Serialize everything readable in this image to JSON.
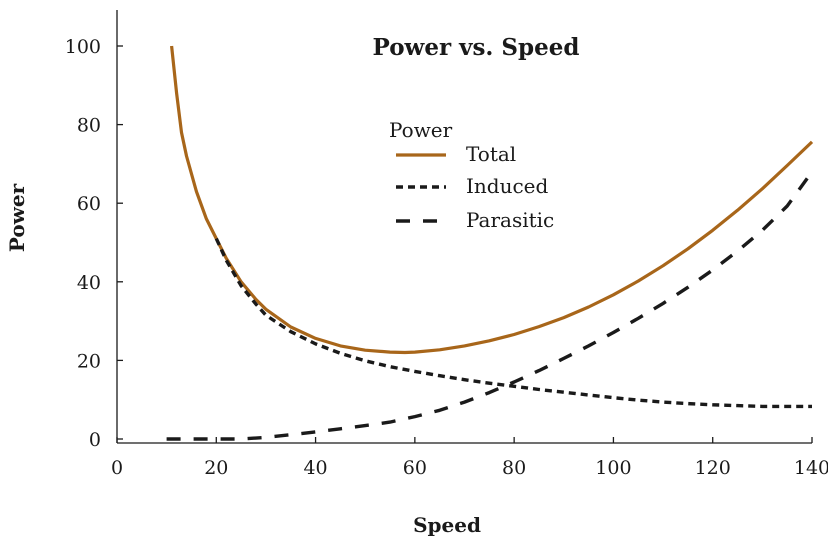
{
  "chart_data": {
    "type": "line",
    "title": "Power vs. Speed",
    "xlabel": "Speed",
    "ylabel": "Power",
    "xlim": [
      0,
      140
    ],
    "ylim": [
      0,
      100
    ],
    "xticks": [
      0,
      20,
      40,
      60,
      80,
      100,
      120,
      140
    ],
    "yticks": [
      0,
      20,
      40,
      60,
      80,
      100
    ],
    "xtick_labels": [
      "0",
      "20",
      "40",
      "60",
      "80",
      "100",
      "120",
      "140"
    ],
    "ytick_labels": [
      "0",
      "20",
      "40",
      "60",
      "80",
      "100"
    ],
    "grid": false,
    "legend": {
      "title": "Power",
      "position": "top-center"
    },
    "series": [
      {
        "name": "Total",
        "style": "solid",
        "color": "#a8661a",
        "x": [
          11,
          12,
          13,
          14,
          16,
          18,
          20,
          22,
          25,
          28,
          30,
          35,
          40,
          45,
          50,
          55,
          58,
          60,
          65,
          70,
          75,
          80,
          85,
          90,
          95,
          100,
          105,
          110,
          115,
          120,
          125,
          130,
          135,
          140
        ],
        "y": [
          100,
          88,
          78,
          72,
          63,
          56,
          51,
          46,
          40,
          35.5,
          33,
          28.5,
          25.6,
          23.7,
          22.6,
          22.1,
          22,
          22.1,
          22.7,
          23.7,
          25,
          26.6,
          28.6,
          30.9,
          33.6,
          36.7,
          40.2,
          44.1,
          48.4,
          53.1,
          58.2,
          63.7,
          69.6,
          75.6
        ]
      },
      {
        "name": "Induced",
        "style": "short-dash",
        "color": "#1a1a1a",
        "x": [
          20,
          22,
          25,
          28,
          30,
          35,
          40,
          45,
          50,
          55,
          60,
          65,
          70,
          75,
          80,
          85,
          90,
          95,
          100,
          105,
          110,
          115,
          120,
          125,
          130,
          135,
          140
        ],
        "y": [
          51,
          45.5,
          39,
          34.3,
          31.5,
          27.3,
          24.2,
          21.8,
          19.9,
          18.4,
          17.2,
          16.1,
          15.1,
          14.2,
          13.4,
          12.6,
          11.9,
          11.2,
          10.5,
          9.9,
          9.4,
          9.0,
          8.7,
          8.5,
          8.3,
          8.3,
          8.3
        ]
      },
      {
        "name": "Parasitic",
        "style": "long-dash",
        "color": "#1a1a1a",
        "x": [
          10,
          15,
          20,
          25,
          30,
          35,
          40,
          45,
          50,
          55,
          60,
          65,
          70,
          75,
          80,
          85,
          90,
          95,
          100,
          105,
          110,
          115,
          120,
          125,
          130,
          135,
          140
        ],
        "y": [
          0,
          0,
          0,
          0,
          0.4,
          1.1,
          1.8,
          2.6,
          3.4,
          4.3,
          5.7,
          7.3,
          9.4,
          11.8,
          14.5,
          17.4,
          20.5,
          23.7,
          27.1,
          30.7,
          34.5,
          38.6,
          43.0,
          47.8,
          53.1,
          59.3,
          68
        ]
      }
    ]
  }
}
